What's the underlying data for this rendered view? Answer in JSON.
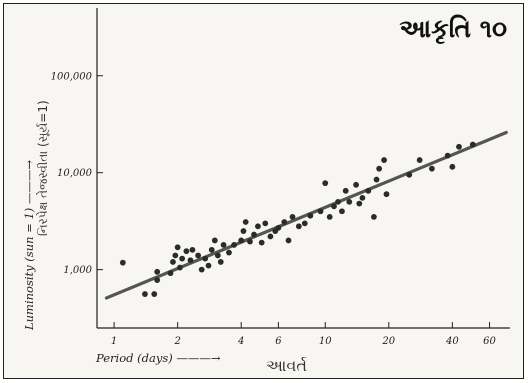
{
  "figure_label": "આકૃતિ ૧૦",
  "chart_data": {
    "type": "scatter",
    "title": "",
    "xlabel": "Period (days) ———→",
    "xlabel_gujarati": "આવર્ત",
    "ylabel": "Luminosity (sun = 1) ———→",
    "ylabel_gujarati": "નિરપેક્ષ તેજસ્વીતા (સૂર્ય=1)",
    "x_scale": "log",
    "y_scale": "log",
    "xlim": [
      0.83,
      75
    ],
    "ylim": [
      250,
      500000
    ],
    "x_ticks": [
      {
        "value": 1,
        "label": "1"
      },
      {
        "value": 2,
        "label": "2"
      },
      {
        "value": 4,
        "label": "4"
      },
      {
        "value": 6,
        "label": "6"
      },
      {
        "value": 10,
        "label": "10"
      },
      {
        "value": 20,
        "label": "20"
      },
      {
        "value": 40,
        "label": "40"
      },
      {
        "value": 60,
        "label": "60"
      }
    ],
    "y_ticks": [
      {
        "value": 1000,
        "label": "1,000"
      },
      {
        "value": 10000,
        "label": "10,000"
      },
      {
        "value": 100000,
        "label": "100,000"
      }
    ],
    "grid": false,
    "points": [
      [
        1.1,
        1180
      ],
      [
        1.4,
        560
      ],
      [
        1.55,
        560
      ],
      [
        1.6,
        780
      ],
      [
        1.6,
        950
      ],
      [
        1.85,
        920
      ],
      [
        1.9,
        1200
      ],
      [
        1.95,
        1400
      ],
      [
        2.0,
        1700
      ],
      [
        2.05,
        1050
      ],
      [
        2.1,
        1300
      ],
      [
        2.2,
        1550
      ],
      [
        2.3,
        1250
      ],
      [
        2.35,
        1600
      ],
      [
        2.5,
        1400
      ],
      [
        2.6,
        1000
      ],
      [
        2.7,
        1300
      ],
      [
        2.8,
        1100
      ],
      [
        2.9,
        1600
      ],
      [
        3.0,
        2000
      ],
      [
        3.1,
        1400
      ],
      [
        3.2,
        1200
      ],
      [
        3.3,
        1800
      ],
      [
        3.5,
        1500
      ],
      [
        3.7,
        1800
      ],
      [
        4.0,
        2000
      ],
      [
        4.1,
        2500
      ],
      [
        4.2,
        3100
      ],
      [
        4.4,
        1950
      ],
      [
        4.6,
        2300
      ],
      [
        4.8,
        2800
      ],
      [
        5.0,
        1900
      ],
      [
        5.2,
        3000
      ],
      [
        5.5,
        2200
      ],
      [
        5.8,
        2500
      ],
      [
        6.0,
        2700
      ],
      [
        6.4,
        3100
      ],
      [
        6.7,
        2000
      ],
      [
        7.0,
        3500
      ],
      [
        7.5,
        2800
      ],
      [
        8.0,
        3000
      ],
      [
        8.5,
        3600
      ],
      [
        9.5,
        4000
      ],
      [
        10.0,
        7800
      ],
      [
        10.5,
        3500
      ],
      [
        11.0,
        4500
      ],
      [
        11.5,
        5000
      ],
      [
        12.0,
        4000
      ],
      [
        12.5,
        6500
      ],
      [
        13.0,
        5000
      ],
      [
        14.0,
        7500
      ],
      [
        14.5,
        4800
      ],
      [
        15.0,
        5500
      ],
      [
        16.0,
        6500
      ],
      [
        17.0,
        3500
      ],
      [
        17.5,
        8500
      ],
      [
        18.0,
        11000
      ],
      [
        19.0,
        13500
      ],
      [
        19.5,
        6000
      ],
      [
        25.0,
        9500
      ],
      [
        28.0,
        13500
      ],
      [
        32.0,
        11000
      ],
      [
        38.0,
        15000
      ],
      [
        40.0,
        11500
      ],
      [
        43.0,
        18500
      ],
      [
        50.0,
        19500
      ]
    ],
    "trend_line": {
      "from": [
        0.92,
        510
      ],
      "to": [
        72,
        26000
      ]
    }
  }
}
